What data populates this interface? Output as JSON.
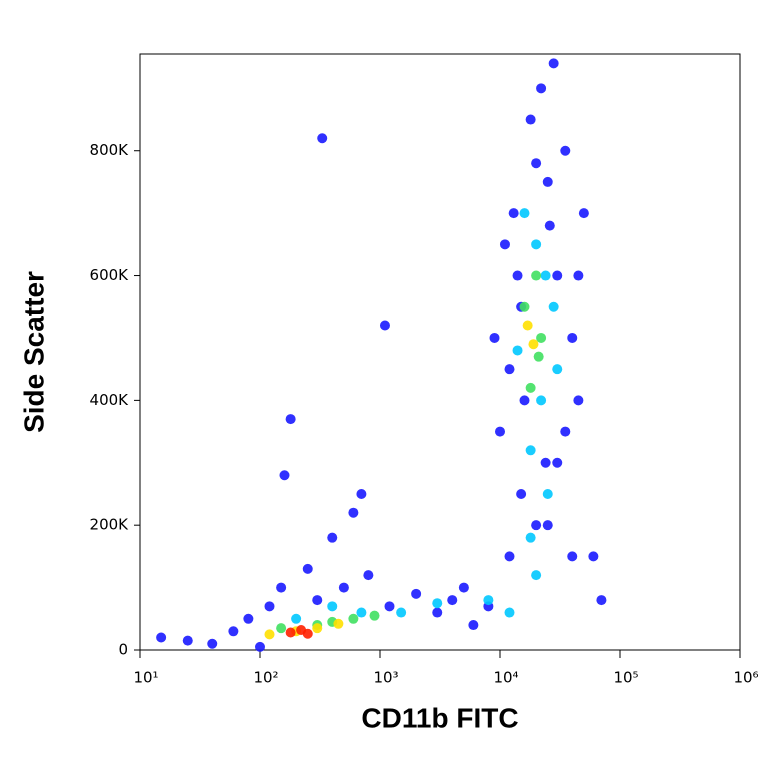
{
  "chart_data": {
    "type": "scatter",
    "x_label": "CD11b FITC",
    "y_label": "Side Scatter",
    "xscale": "log",
    "xlim": [
      10,
      1000000
    ],
    "xticks": [
      {
        "value": 10,
        "label": "10¹"
      },
      {
        "value": 100,
        "label": "10²"
      },
      {
        "value": 1000,
        "label": "10³"
      },
      {
        "value": 10000,
        "label": "10⁴"
      },
      {
        "value": 100000,
        "label": "10⁵"
      },
      {
        "value": 1000000,
        "label": "10⁶"
      }
    ],
    "ylim": [
      0,
      955000
    ],
    "yticks": [
      0,
      {
        "value": 200000,
        "label": "200K"
      },
      {
        "value": 400000,
        "label": "400K"
      },
      {
        "value": 600000,
        "label": "600K"
      },
      {
        "value": 800000,
        "label": "800K"
      }
    ],
    "series": [
      {
        "color": "#1a1aff",
        "x": [
          15,
          25,
          40,
          60,
          80,
          120,
          300,
          500,
          800,
          1200,
          2000,
          3000,
          5000,
          8000,
          12000,
          15000,
          25000,
          40000,
          60000,
          10000,
          12000,
          14000,
          30000,
          45000,
          9000,
          11000,
          13000,
          25000,
          35000,
          50000,
          18000,
          22000,
          28000,
          20000,
          15000,
          24000,
          30000,
          40000,
          100,
          150,
          250,
          400,
          700,
          330,
          1100,
          180,
          160,
          600,
          70000,
          6000,
          4000,
          16000,
          35000,
          20000,
          26000,
          45000
        ],
        "y": [
          20000,
          15000,
          10000,
          30000,
          50000,
          70000,
          80000,
          100000,
          120000,
          70000,
          90000,
          60000,
          100000,
          70000,
          150000,
          250000,
          200000,
          150000,
          150000,
          350000,
          450000,
          600000,
          300000,
          400000,
          500000,
          650000,
          700000,
          750000,
          800000,
          700000,
          850000,
          900000,
          940000,
          200000,
          550000,
          300000,
          600000,
          500000,
          5000,
          100000,
          130000,
          180000,
          250000,
          820000,
          520000,
          370000,
          280000,
          220000,
          80000,
          40000,
          80000,
          400000,
          350000,
          780000,
          680000,
          600000
        ]
      },
      {
        "color": "#00c8ff",
        "x": [
          12000,
          8000,
          20000,
          25000,
          18000,
          22000,
          14000,
          28000,
          20000,
          16000,
          30000,
          700,
          400,
          1500,
          3000,
          18000,
          24000,
          200
        ],
        "y": [
          60000,
          80000,
          120000,
          250000,
          320000,
          400000,
          480000,
          550000,
          650000,
          700000,
          450000,
          60000,
          70000,
          60000,
          75000,
          180000,
          600000,
          50000
        ]
      },
      {
        "color": "#40e060",
        "x": [
          600,
          400,
          300,
          18000,
          22000,
          16000,
          20000,
          900,
          150,
          21000
        ],
        "y": [
          50000,
          45000,
          40000,
          420000,
          500000,
          550000,
          600000,
          55000,
          35000,
          470000
        ]
      },
      {
        "color": "#ffe000",
        "x": [
          200,
          300,
          120,
          450,
          19000,
          17000
        ],
        "y": [
          30000,
          35000,
          25000,
          42000,
          490000,
          520000
        ]
      },
      {
        "color": "#ff2000",
        "x": [
          180,
          220,
          250
        ],
        "y": [
          28000,
          32000,
          26000
        ]
      }
    ]
  }
}
